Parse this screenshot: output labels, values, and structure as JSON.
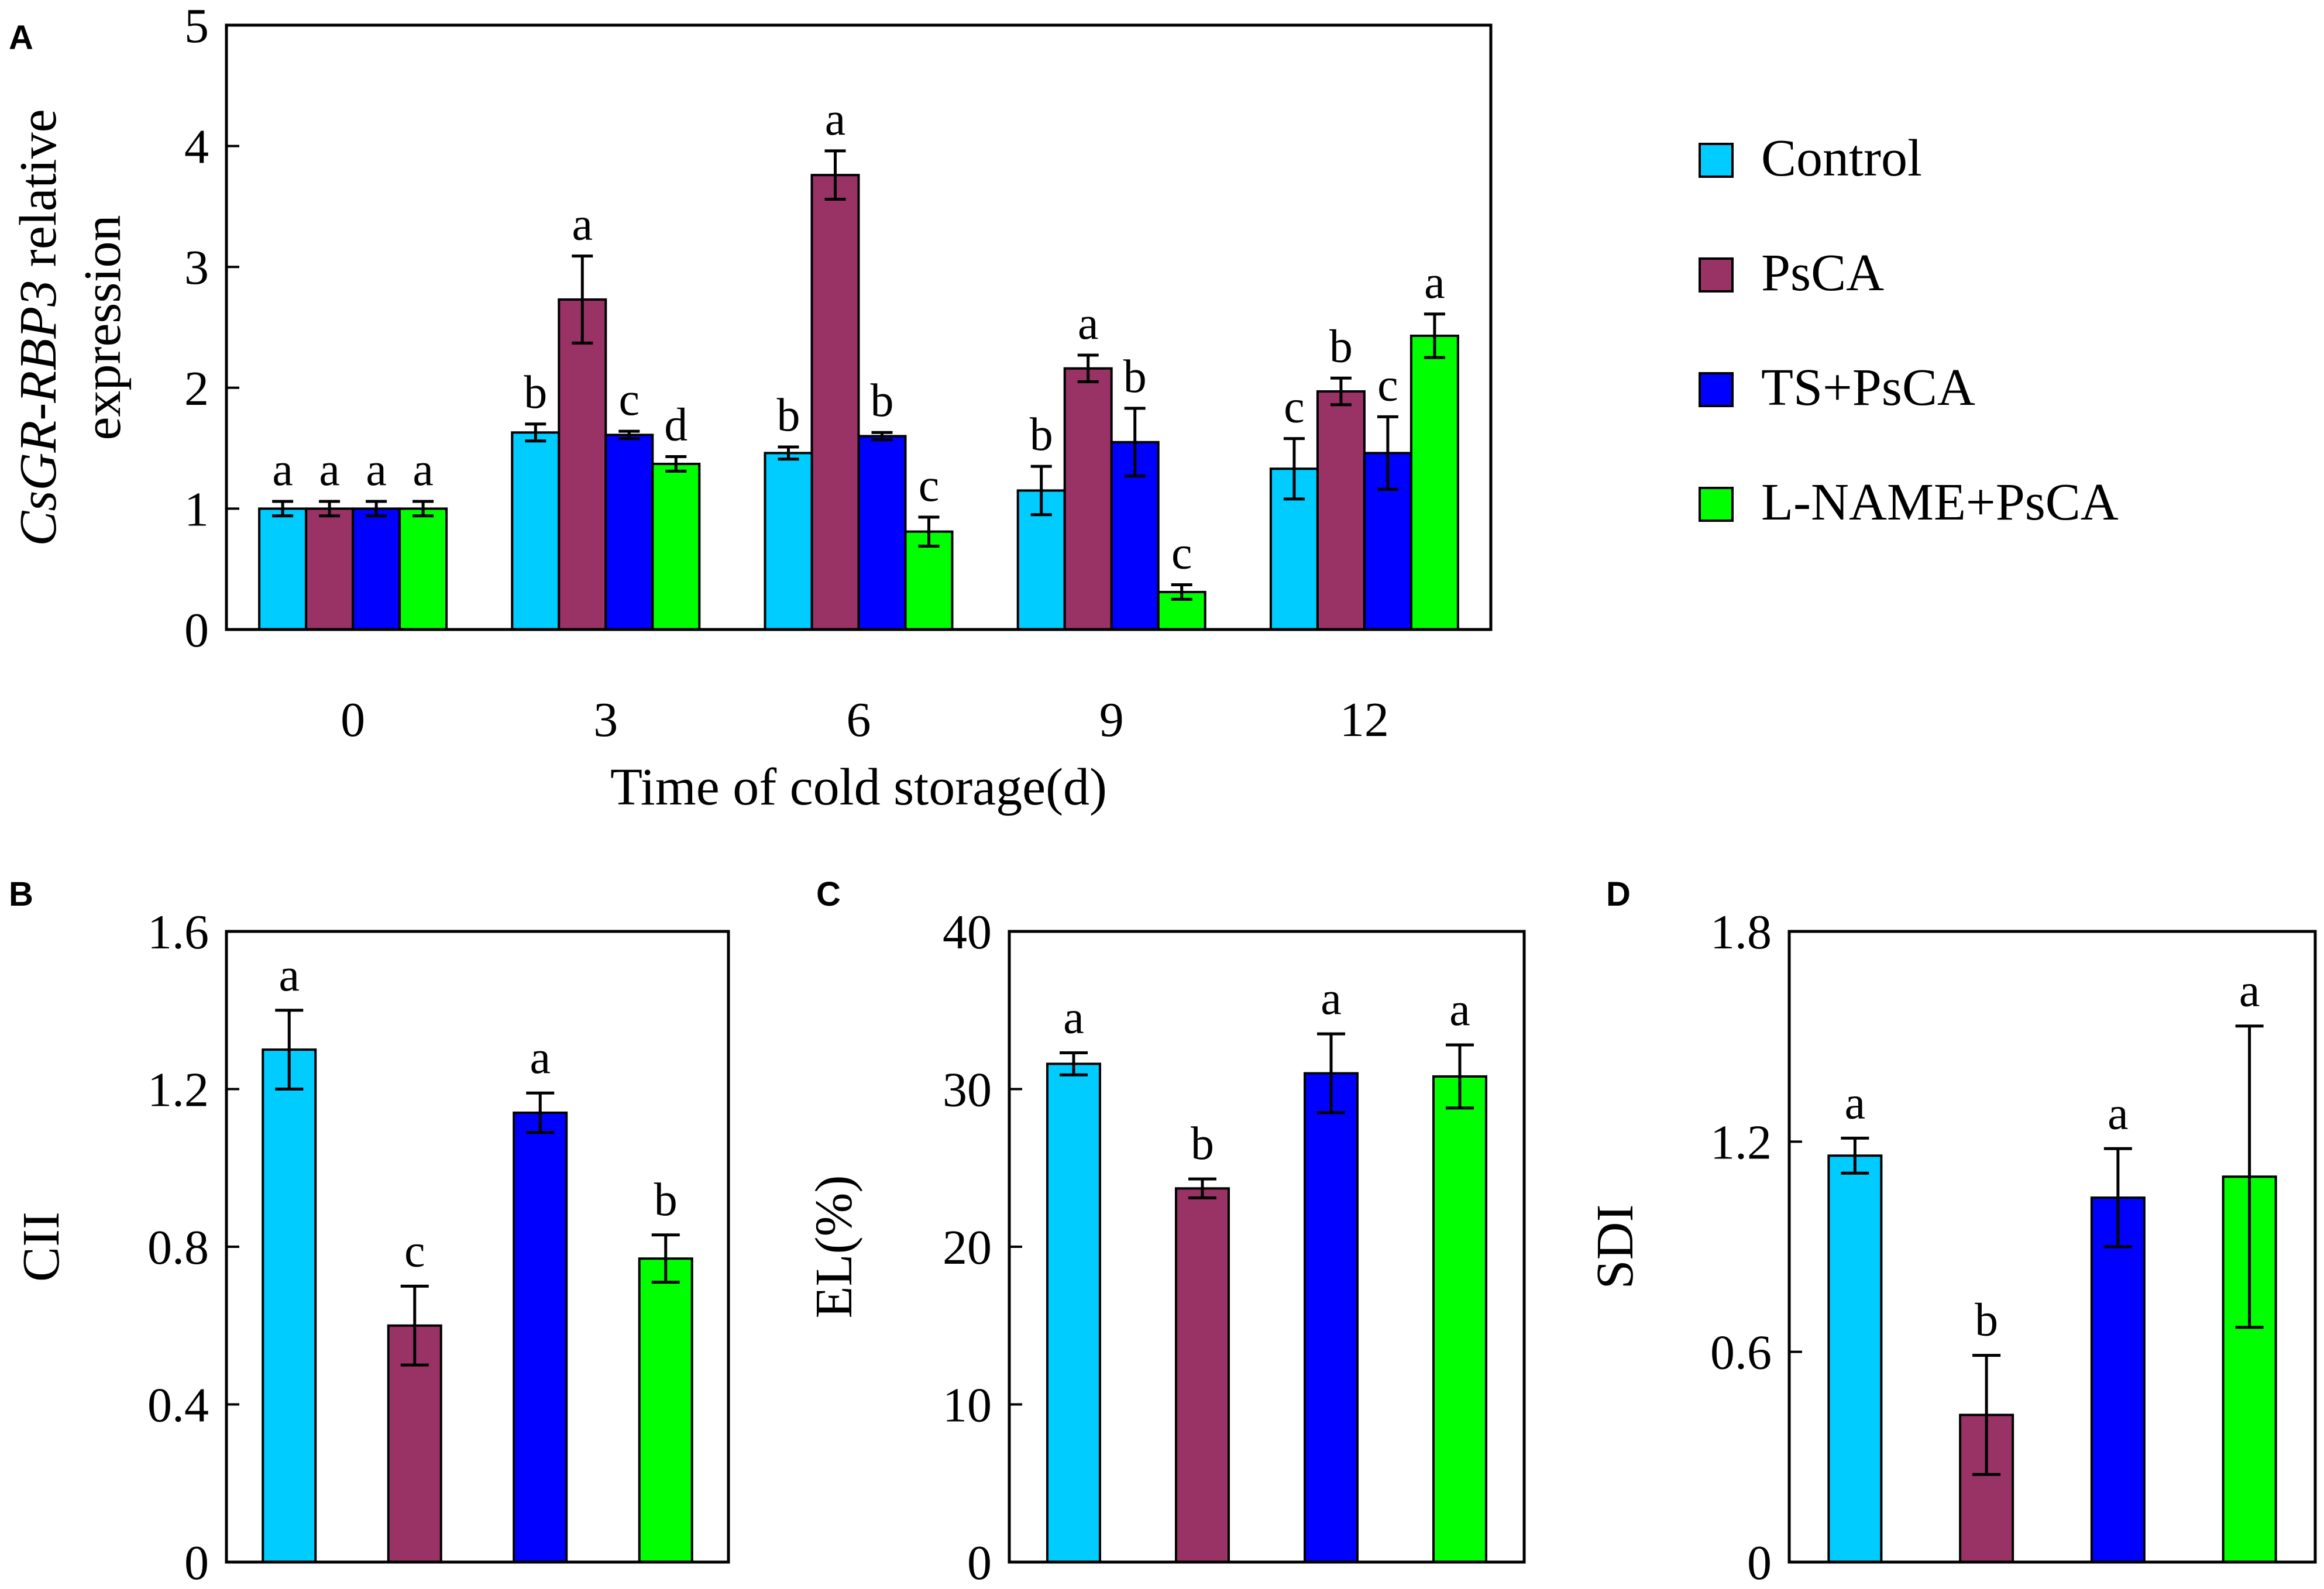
{
  "colors": {
    "Control": "#00ccff",
    "PsCA": "#993366",
    "TS+PsCA": "#0000ff",
    "L-NAME+PsCA": "#00ff00"
  },
  "chart_data": [
    {
      "panel": "A",
      "type": "bar",
      "ylabel_italic": "CsGR-RBP3",
      "ylabel_rest": " relative",
      "ylabel_line2": "expression",
      "xlabel": "Time of cold storage(d)",
      "ylim": [
        0,
        5
      ],
      "yticks": [
        "0",
        "1",
        "2",
        "3",
        "4",
        "5"
      ],
      "categories": [
        "0",
        "3",
        "6",
        "9",
        "12"
      ],
      "series": [
        {
          "name": "Control",
          "values": [
            1.0,
            1.63,
            1.46,
            1.15,
            1.33
          ],
          "errors": [
            0.06,
            0.07,
            0.05,
            0.2,
            0.25
          ],
          "letters": [
            "a",
            "b",
            "b",
            "b",
            "c"
          ]
        },
        {
          "name": "PsCA",
          "values": [
            1.0,
            2.73,
            3.76,
            2.16,
            1.97
          ],
          "errors": [
            0.06,
            0.36,
            0.2,
            0.11,
            0.11
          ],
          "letters": [
            "a",
            "a",
            "a",
            "a",
            "b"
          ]
        },
        {
          "name": "TS+PsCA",
          "values": [
            1.0,
            1.61,
            1.6,
            1.55,
            1.46
          ],
          "errors": [
            0.06,
            0.03,
            0.03,
            0.28,
            0.3
          ],
          "letters": [
            "a",
            "c",
            "b",
            "b",
            "c"
          ]
        },
        {
          "name": "L-NAME+PsCA",
          "values": [
            1.0,
            1.37,
            0.81,
            0.31,
            2.43
          ],
          "errors": [
            0.06,
            0.06,
            0.12,
            0.06,
            0.18
          ],
          "letters": [
            "a",
            "d",
            "c",
            "c",
            "a"
          ]
        }
      ],
      "legend": [
        "Control",
        "PsCA",
        "TS+PsCA",
        "L-NAME+PsCA"
      ]
    },
    {
      "panel": "B",
      "type": "bar",
      "ylabel": "CII",
      "ylim": [
        0,
        1.6
      ],
      "yticks": [
        "0",
        "0.4",
        "0.8",
        "1.2",
        "1.6"
      ],
      "categories": [
        "Control",
        "PsCA",
        "TS+PsCA",
        "L-NAME+PsCA"
      ],
      "values": [
        1.3,
        0.6,
        1.14,
        0.77
      ],
      "errors": [
        0.1,
        0.1,
        0.05,
        0.06
      ],
      "letters": [
        "a",
        "c",
        "a",
        "b"
      ]
    },
    {
      "panel": "C",
      "type": "bar",
      "ylabel": "EL(%)",
      "ylim": [
        0,
        40
      ],
      "yticks": [
        "0",
        "10",
        "20",
        "30",
        "40"
      ],
      "categories": [
        "Control",
        "PsCA",
        "TS+PsCA",
        "L-NAME+PsCA"
      ],
      "values": [
        31.6,
        23.7,
        31.0,
        30.8
      ],
      "errors": [
        0.7,
        0.6,
        2.5,
        2.0
      ],
      "letters": [
        "a",
        "b",
        "a",
        "a"
      ]
    },
    {
      "panel": "D",
      "type": "bar",
      "ylabel": "SDI",
      "ylim": [
        0,
        1.8
      ],
      "yticks": [
        "0",
        "0.6",
        "1.2",
        "1.8"
      ],
      "categories": [
        "Control",
        "PsCA",
        "TS+PsCA",
        "L-NAME+PsCA"
      ],
      "values": [
        1.16,
        0.42,
        1.04,
        1.1
      ],
      "errors": [
        0.05,
        0.17,
        0.14,
        0.43
      ],
      "letters": [
        "a",
        "b",
        "a",
        "a"
      ]
    }
  ]
}
